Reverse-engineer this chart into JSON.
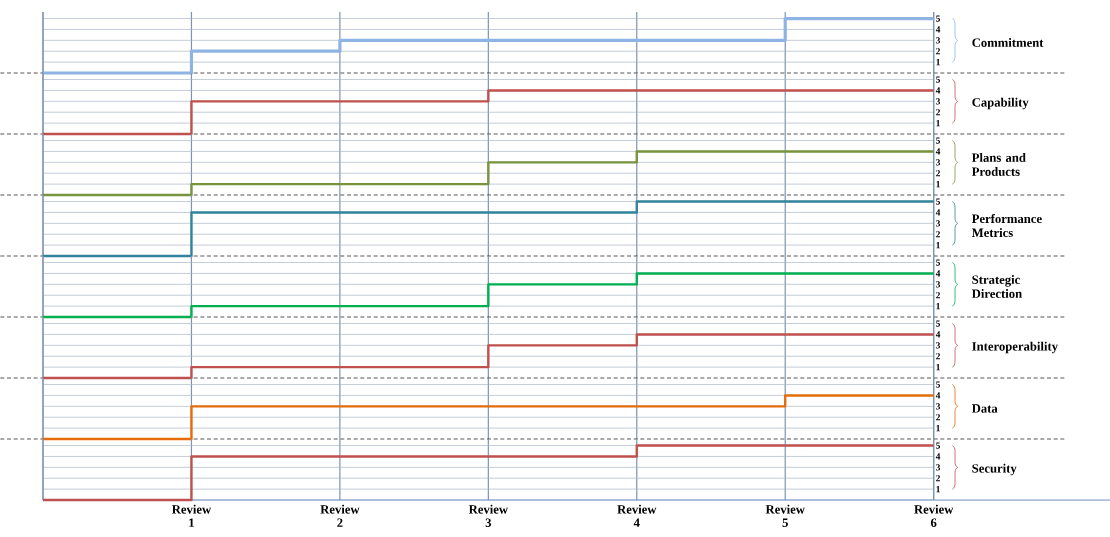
{
  "chart_data": [
    {
      "type": "step",
      "ylabel": "Commitment",
      "categories": [
        null,
        null,
        null,
        null,
        null,
        null,
        null
      ],
      "values": [
        0,
        2,
        3,
        3,
        3,
        5,
        5
      ],
      "color": "#8eb4e3",
      "ylim": [
        0,
        5.6
      ],
      "yticks": [
        1,
        2,
        3,
        4,
        5
      ],
      "grid": true,
      "tick_labels": "y"
    },
    {
      "type": "step",
      "ylabel": "Capability",
      "categories": [
        null,
        null,
        null,
        null,
        null,
        null,
        null
      ],
      "values": [
        0,
        3,
        3,
        4,
        4,
        4,
        4
      ],
      "color": "#c0504d",
      "ylim": [
        0,
        5.6
      ],
      "yticks": [
        1,
        2,
        3,
        4,
        5
      ],
      "grid": true,
      "tick_labels": "y"
    },
    {
      "type": "step",
      "ylabel": "Plans and Products",
      "categories": [
        null,
        null,
        null,
        null,
        null,
        null,
        null
      ],
      "values": [
        0,
        1,
        1,
        3,
        4,
        4,
        4
      ],
      "color": "#77933c",
      "ylim": [
        0,
        5.6
      ],
      "yticks": [
        1,
        2,
        3,
        4,
        5
      ],
      "grid": true,
      "tick_labels": "y"
    },
    {
      "type": "step",
      "ylabel": "Performance Metrics",
      "categories": [
        null,
        null,
        null,
        null,
        null,
        null,
        null
      ],
      "values": [
        0,
        4,
        4,
        4,
        5,
        5,
        5
      ],
      "color": "#31849b",
      "ylim": [
        0,
        5.6
      ],
      "yticks": [
        1,
        2,
        3,
        4,
        5
      ],
      "grid": true,
      "tick_labels": "y"
    },
    {
      "type": "step",
      "ylabel": "Strategic Direction",
      "categories": [
        null,
        null,
        null,
        null,
        null,
        null,
        null
      ],
      "values": [
        0,
        1,
        1,
        3,
        4,
        4,
        4
      ],
      "color": "#00b050",
      "ylim": [
        0,
        5.6
      ],
      "yticks": [
        1,
        2,
        3,
        4,
        5
      ],
      "grid": true,
      "tick_labels": "y"
    },
    {
      "type": "step",
      "ylabel": "Interoperability",
      "categories": [
        null,
        null,
        null,
        null,
        null,
        null,
        null
      ],
      "values": [
        0,
        1,
        1,
        3,
        4,
        4,
        4
      ],
      "color": "#c0504d",
      "ylim": [
        0,
        5.6
      ],
      "yticks": [
        1,
        2,
        3,
        4,
        5
      ],
      "grid": true,
      "tick_labels": "y"
    },
    {
      "type": "step",
      "ylabel": "Data",
      "categories": [
        null,
        null,
        null,
        null,
        null,
        null,
        null
      ],
      "values": [
        0,
        3,
        3,
        3,
        3,
        4,
        4
      ],
      "color": "#e46c0a",
      "ylim": [
        0,
        5.6
      ],
      "yticks": [
        1,
        2,
        3,
        4,
        5
      ],
      "grid": true,
      "tick_labels": "y"
    },
    {
      "type": "step",
      "ylabel": "Security",
      "categories": [
        null,
        "Review 1",
        "Review 2",
        "Review 3",
        "Review 4",
        "Review 5",
        "Review 6"
      ],
      "values": [
        0,
        4,
        4,
        4,
        5,
        5,
        5
      ],
      "color": "#c0504d",
      "ylim": [
        0,
        5.6
      ],
      "yticks": [
        1,
        2,
        3,
        4,
        5
      ],
      "grid": true
    }
  ]
}
